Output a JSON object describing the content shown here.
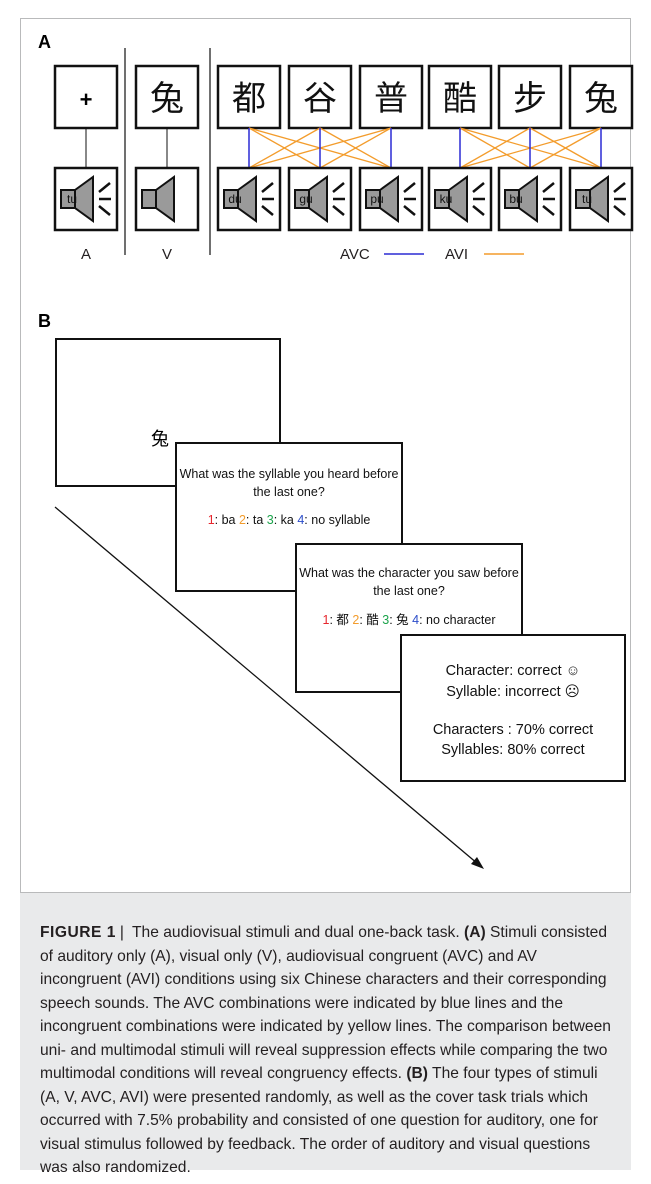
{
  "panel_a": {
    "letter": "A",
    "plus": "+",
    "visual_char": "兔",
    "characters": [
      "都",
      "谷",
      "普",
      "酷",
      "步",
      "兔"
    ],
    "syllables": [
      "du",
      "gu",
      "pu",
      "ku",
      "bu",
      "tu"
    ],
    "auditory_syllable": "tu",
    "label_a": "A",
    "label_v": "V",
    "legend_avc": "AVC",
    "legend_avi": "AVI",
    "avc_color": "#2b2bd4",
    "avi_color": "#f39c2c"
  },
  "panel_b": {
    "letter": "B",
    "screen1_char": "兔",
    "q1": {
      "line1": "What was the syllable you heard before",
      "line2": "the last one?",
      "options": [
        {
          "num": "1",
          "text": ": ba ",
          "color": "#e6262d"
        },
        {
          "num": "2",
          "text": ": ta ",
          "color": "#f39c2c"
        },
        {
          "num": "3",
          "text": ": ka ",
          "color": "#1aa34a"
        },
        {
          "num": "4",
          "text": ": no syllable",
          "color": "#2b4cc9"
        }
      ]
    },
    "q2": {
      "line1": "What was the character you saw before",
      "line2": "the last one?",
      "options": [
        {
          "num": "1",
          "text": ": 都 ",
          "color": "#e6262d"
        },
        {
          "num": "2",
          "text": ": 酷 ",
          "color": "#f39c2c"
        },
        {
          "num": "3",
          "text": ": 兔 ",
          "color": "#1aa34a"
        },
        {
          "num": "4",
          "text": ": no character",
          "color": "#2b4cc9"
        }
      ]
    },
    "feedback": {
      "line1": "Character: correct ☺",
      "line2": "Syllable: incorrect ☹",
      "line3": "Characters : 70% correct",
      "line4": "Syllables: 80% correct"
    }
  },
  "caption": {
    "label": "FIGURE 1",
    "sep": "|",
    "intro": " The audiovisual stimuli and dual one-back task. ",
    "a_tag": "(A)",
    "a_text": " Stimuli consisted of auditory only (A), visual only (V), audiovisual congruent (AVC) and AV incongruent (AVI) conditions using six Chinese characters and their corresponding speech sounds. The AVC combinations were indicated by blue lines and the incongruent combinations were indicated by yellow lines. The comparison between uni- and multimodal stimuli will reveal suppression effects while comparing the two multimodal conditions will reveal congruency effects. ",
    "b_tag": "(B)",
    "b_text": " The four types of stimuli (A, V, AVC, AVI) were presented randomly, as well as the cover task trials which occurred with 7.5% probability and consisted of one question for auditory, one for visual stimulus followed by feedback. The order of auditory and visual questions was also randomized."
  }
}
